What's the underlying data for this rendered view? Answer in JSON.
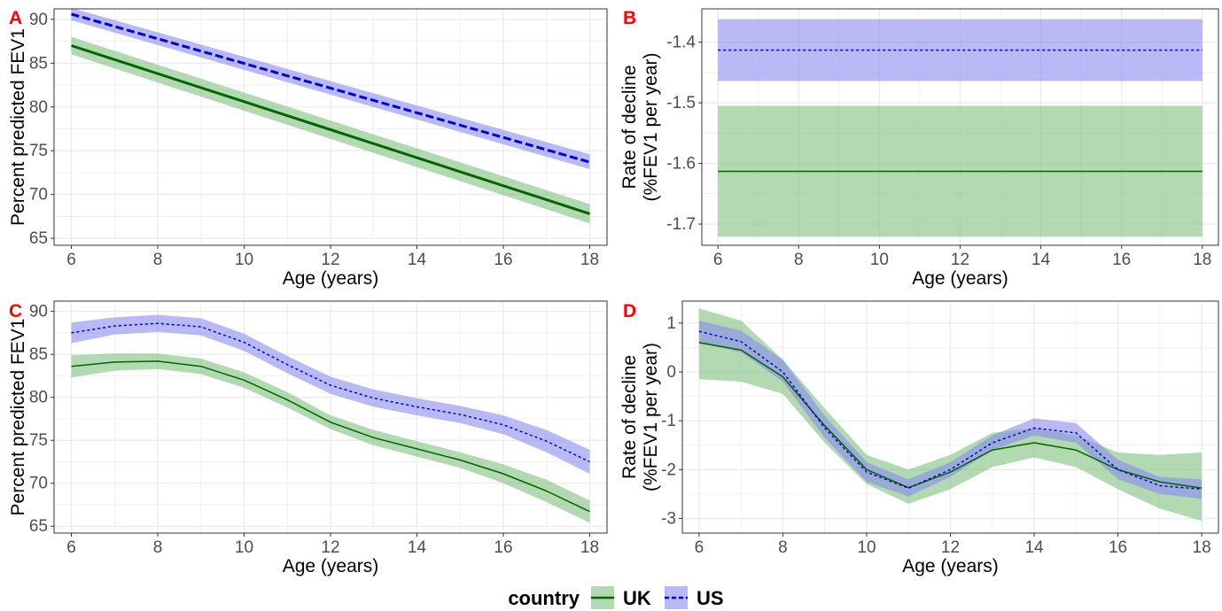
{
  "colors": {
    "uk_line": "#006400",
    "uk_fill": "#7fbf7f",
    "us_line": "#0000cd",
    "us_fill": "#8a8aee",
    "panel_tag": "#ff0000",
    "grid": "#ebebeb",
    "border": "#333333"
  },
  "legend": {
    "title": "country",
    "items": [
      {
        "label": "UK",
        "series": "uk"
      },
      {
        "label": "US",
        "series": "us"
      }
    ],
    "position": "bottom"
  },
  "chart_data": [
    {
      "panel": "A",
      "type": "line",
      "xlabel": "Age (years)",
      "ylabel": "Percent predicted FEV1",
      "xlim": [
        5.6,
        18.4
      ],
      "ylim": [
        64.2,
        91.2
      ],
      "xticks": [
        6,
        8,
        10,
        12,
        14,
        16,
        18
      ],
      "yticks": [
        65,
        70,
        75,
        80,
        85,
        90
      ],
      "grid": true,
      "series": [
        {
          "name": "UK",
          "key": "uk",
          "dash": "solid",
          "line_width": 3,
          "x": [
            6,
            18
          ],
          "y": [
            87.0,
            67.8
          ],
          "lower": [
            86.0,
            66.7
          ],
          "upper": [
            88.0,
            68.9
          ]
        },
        {
          "name": "US",
          "key": "us",
          "dash": "dashed",
          "line_width": 3,
          "x": [
            6,
            18
          ],
          "y": [
            90.6,
            73.7
          ],
          "lower": [
            89.9,
            72.9
          ],
          "upper": [
            91.3,
            74.6
          ]
        }
      ]
    },
    {
      "panel": "B",
      "type": "line",
      "xlabel": "Age (years)",
      "ylabel": [
        "Rate of decline",
        "(%FEV1 per year)"
      ],
      "xlim": [
        5.6,
        18.4
      ],
      "ylim": [
        -1.735,
        -1.345
      ],
      "xticks": [
        6,
        8,
        10,
        12,
        14,
        16,
        18
      ],
      "yticks": [
        -1.7,
        -1.6,
        -1.5,
        -1.4
      ],
      "grid": true,
      "series": [
        {
          "name": "UK",
          "key": "uk",
          "dash": "solid",
          "line_width": 1.5,
          "x": [
            6,
            18
          ],
          "y": [
            -1.613,
            -1.613
          ],
          "lower": [
            -1.721,
            -1.721
          ],
          "upper": [
            -1.505,
            -1.505
          ]
        },
        {
          "name": "US",
          "key": "us",
          "dash": "dotted",
          "line_width": 1.5,
          "x": [
            6,
            18
          ],
          "y": [
            -1.413,
            -1.413
          ],
          "lower": [
            -1.464,
            -1.464
          ],
          "upper": [
            -1.362,
            -1.362
          ]
        }
      ]
    },
    {
      "panel": "C",
      "type": "line",
      "xlabel": "Age (years)",
      "ylabel": "Percent predicted FEV1",
      "xlim": [
        5.6,
        18.4
      ],
      "ylim": [
        64.2,
        91.2
      ],
      "xticks": [
        6,
        8,
        10,
        12,
        14,
        16,
        18
      ],
      "yticks": [
        65,
        70,
        75,
        80,
        85,
        90
      ],
      "grid": true,
      "series": [
        {
          "name": "UK",
          "key": "uk",
          "dash": "solid",
          "line_width": 1.5,
          "x": [
            6,
            7,
            8,
            9,
            10,
            11,
            12,
            13,
            14,
            15,
            16,
            17,
            18
          ],
          "y": [
            83.6,
            84.1,
            84.2,
            83.6,
            82.0,
            79.7,
            77.1,
            75.3,
            74.0,
            72.7,
            71.1,
            69.1,
            66.7
          ],
          "lower": [
            82.3,
            83.1,
            83.3,
            82.7,
            81.1,
            78.8,
            76.3,
            74.4,
            73.1,
            71.8,
            70.0,
            67.8,
            65.4
          ],
          "upper": [
            84.9,
            85.1,
            85.1,
            84.5,
            82.9,
            80.6,
            77.9,
            76.2,
            74.9,
            73.6,
            72.2,
            70.4,
            68.0
          ]
        },
        {
          "name": "US",
          "key": "us",
          "dash": "dotted",
          "line_width": 1.5,
          "x": [
            6,
            7,
            8,
            9,
            10,
            11,
            12,
            13,
            14,
            15,
            16,
            17,
            18
          ],
          "y": [
            87.5,
            88.3,
            88.6,
            88.2,
            86.4,
            83.8,
            81.4,
            79.9,
            78.9,
            78.0,
            76.8,
            74.9,
            72.5
          ],
          "lower": [
            86.3,
            87.3,
            87.6,
            87.2,
            85.4,
            82.8,
            80.4,
            78.9,
            77.9,
            77.0,
            75.7,
            73.6,
            71.1
          ],
          "upper": [
            88.7,
            89.3,
            89.6,
            89.2,
            87.4,
            84.8,
            82.4,
            80.9,
            79.9,
            79.0,
            77.9,
            76.2,
            73.9
          ]
        }
      ]
    },
    {
      "panel": "D",
      "type": "line",
      "xlabel": "Age (years)",
      "ylabel": [
        "Rate of decline",
        "(%FEV1 per year)"
      ],
      "xlim": [
        5.6,
        18.4
      ],
      "ylim": [
        -3.3,
        1.45
      ],
      "xticks": [
        6,
        8,
        10,
        12,
        14,
        16,
        18
      ],
      "yticks": [
        -3,
        -2,
        -1,
        0,
        1
      ],
      "grid": true,
      "series": [
        {
          "name": "UK",
          "key": "uk",
          "dash": "solid",
          "line_width": 1.5,
          "x": [
            6,
            7,
            8,
            9,
            10,
            11,
            12,
            13,
            14,
            15,
            16,
            17,
            18
          ],
          "y": [
            0.6,
            0.45,
            -0.1,
            -1.1,
            -2.0,
            -2.37,
            -2.05,
            -1.6,
            -1.45,
            -1.6,
            -2.0,
            -2.25,
            -2.38
          ],
          "lower": [
            -0.15,
            -0.2,
            -0.45,
            -1.45,
            -2.3,
            -2.7,
            -2.4,
            -1.95,
            -1.75,
            -1.95,
            -2.4,
            -2.8,
            -3.05
          ],
          "upper": [
            1.3,
            1.05,
            0.25,
            -0.75,
            -1.7,
            -2.0,
            -1.7,
            -1.25,
            -1.15,
            -1.3,
            -1.65,
            -1.7,
            -1.65
          ]
        },
        {
          "name": "US",
          "key": "us",
          "dash": "dotted",
          "line_width": 1.5,
          "x": [
            6,
            7,
            8,
            9,
            10,
            11,
            12,
            13,
            14,
            15,
            16,
            17,
            18
          ],
          "y": [
            0.83,
            0.62,
            0.0,
            -1.15,
            -2.05,
            -2.38,
            -2.0,
            -1.45,
            -1.15,
            -1.25,
            -2.0,
            -2.33,
            -2.4
          ],
          "lower": [
            0.6,
            0.4,
            -0.2,
            -1.35,
            -2.25,
            -2.55,
            -2.15,
            -1.6,
            -1.3,
            -1.45,
            -2.2,
            -2.5,
            -2.6
          ],
          "upper": [
            1.05,
            0.85,
            0.25,
            -0.9,
            -1.85,
            -2.2,
            -1.85,
            -1.3,
            -0.95,
            -1.05,
            -1.8,
            -2.15,
            -2.2
          ]
        }
      ]
    }
  ]
}
